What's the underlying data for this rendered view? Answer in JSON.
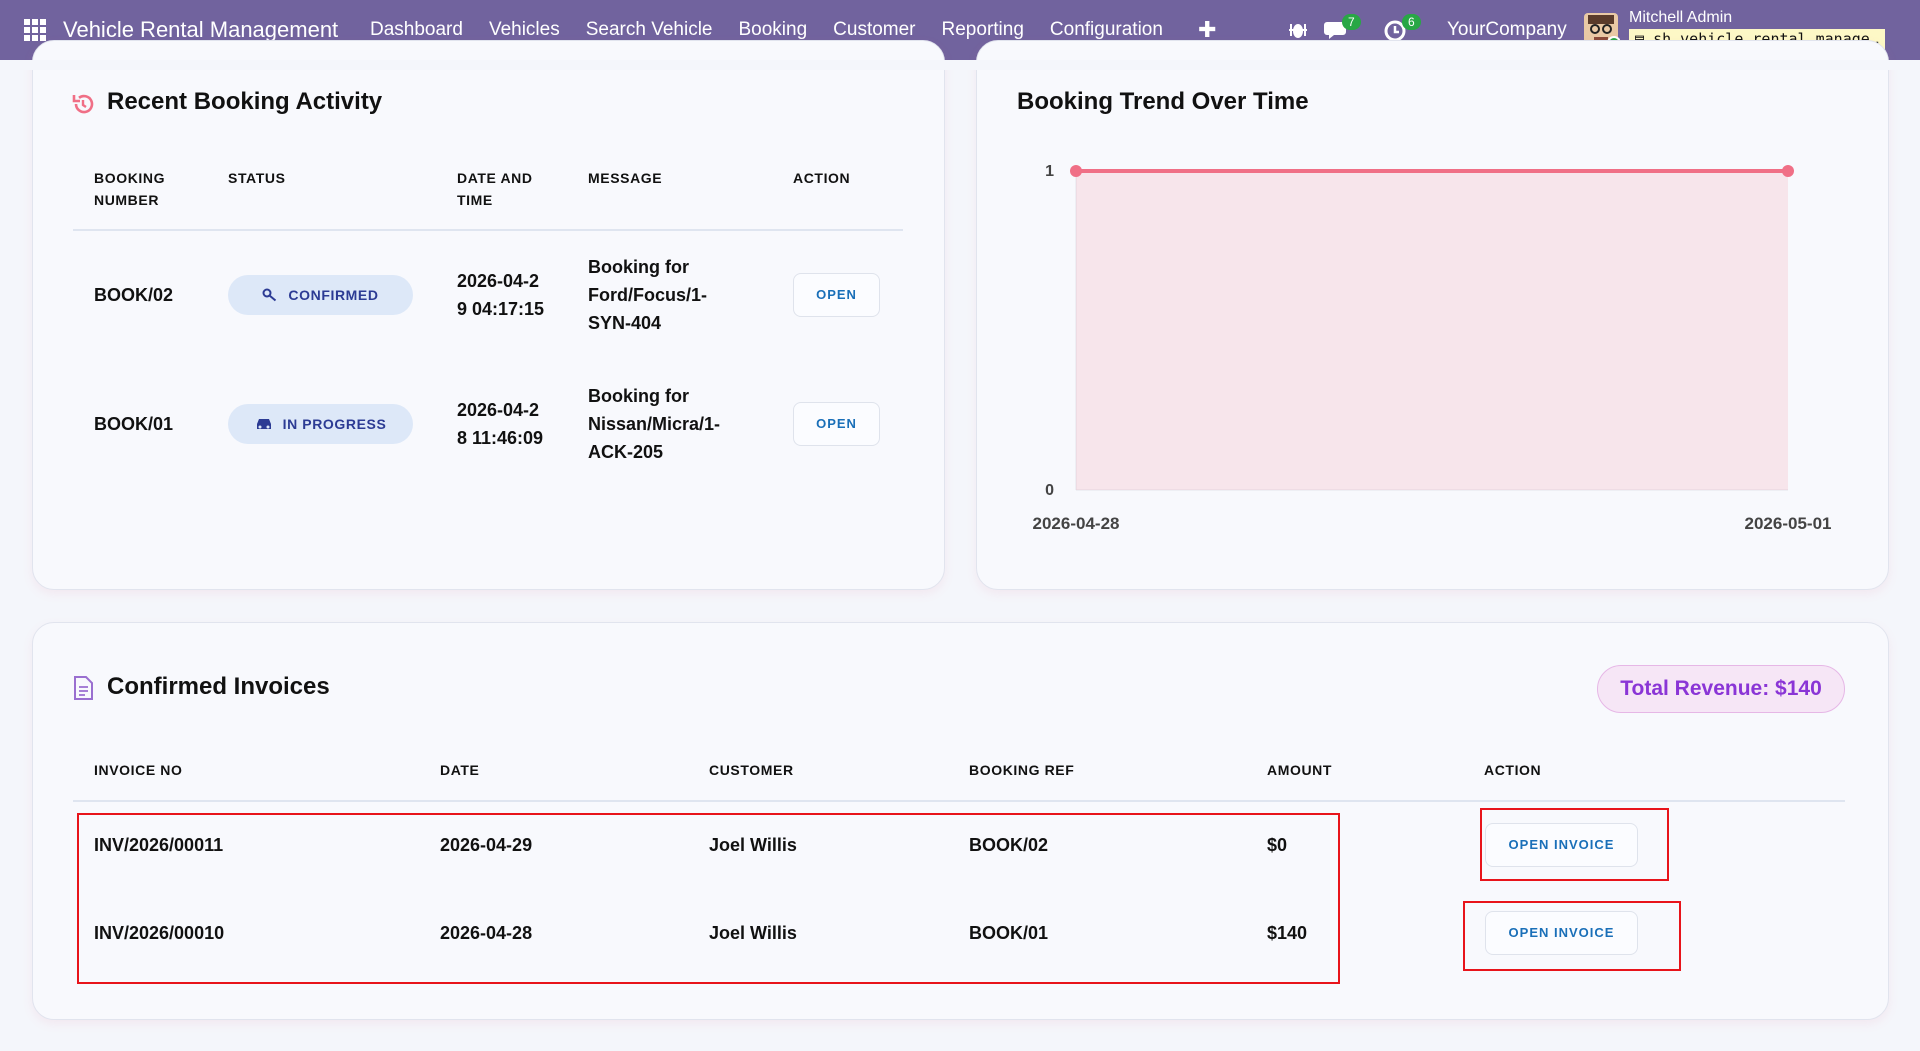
{
  "navbar": {
    "app_name": "Vehicle Rental Management",
    "menu": [
      "Dashboard",
      "Vehicles",
      "Search Vehicle",
      "Booking",
      "Customer",
      "Reporting",
      "Configuration"
    ],
    "messages_count": 7,
    "activities_count": 6,
    "company": "YourCompany",
    "user": "Mitchell Admin",
    "database": "sh_vehicle_rental_manage…"
  },
  "recent_booking": {
    "title": "Recent Booking Activity",
    "columns": [
      "BOOKING NUMBER",
      "STATUS",
      "DATE AND TIME",
      "MESSAGE",
      "ACTION"
    ],
    "rows": [
      {
        "number": "BOOK/02",
        "status": "CONFIRMED",
        "datetime": "2026-04-29 04:17:15",
        "message": "Booking for Ford/Focus/1-SYN-404",
        "action": "OPEN"
      },
      {
        "number": "BOOK/01",
        "status": "IN PROGRESS",
        "datetime": "2026-04-28 11:46:09",
        "message": "Booking for Nissan/Micra/1-ACK-205",
        "action": "OPEN"
      }
    ]
  },
  "chart_data": {
    "type": "line",
    "title": "Booking Trend Over Time",
    "x": [
      "2026-04-28",
      "2026-05-01"
    ],
    "values": [
      1,
      1
    ],
    "ylim": [
      0,
      1
    ],
    "yticks": [
      0,
      1
    ],
    "color": "#f06f86"
  },
  "invoices": {
    "title": "Confirmed Invoices",
    "total_revenue": "Total Revenue: $140",
    "columns": [
      "INVOICE NO",
      "DATE",
      "CUSTOMER",
      "BOOKING REF",
      "AMOUNT",
      "ACTION"
    ],
    "rows": [
      [
        "INV/2026/00011",
        "2026-04-29",
        "Joel Willis",
        "BOOK/02",
        "$0",
        "OPEN INVOICE"
      ],
      [
        "INV/2026/00010",
        "2026-04-28",
        "Joel Willis",
        "BOOK/01",
        "$140",
        "OPEN INVOICE"
      ]
    ]
  }
}
